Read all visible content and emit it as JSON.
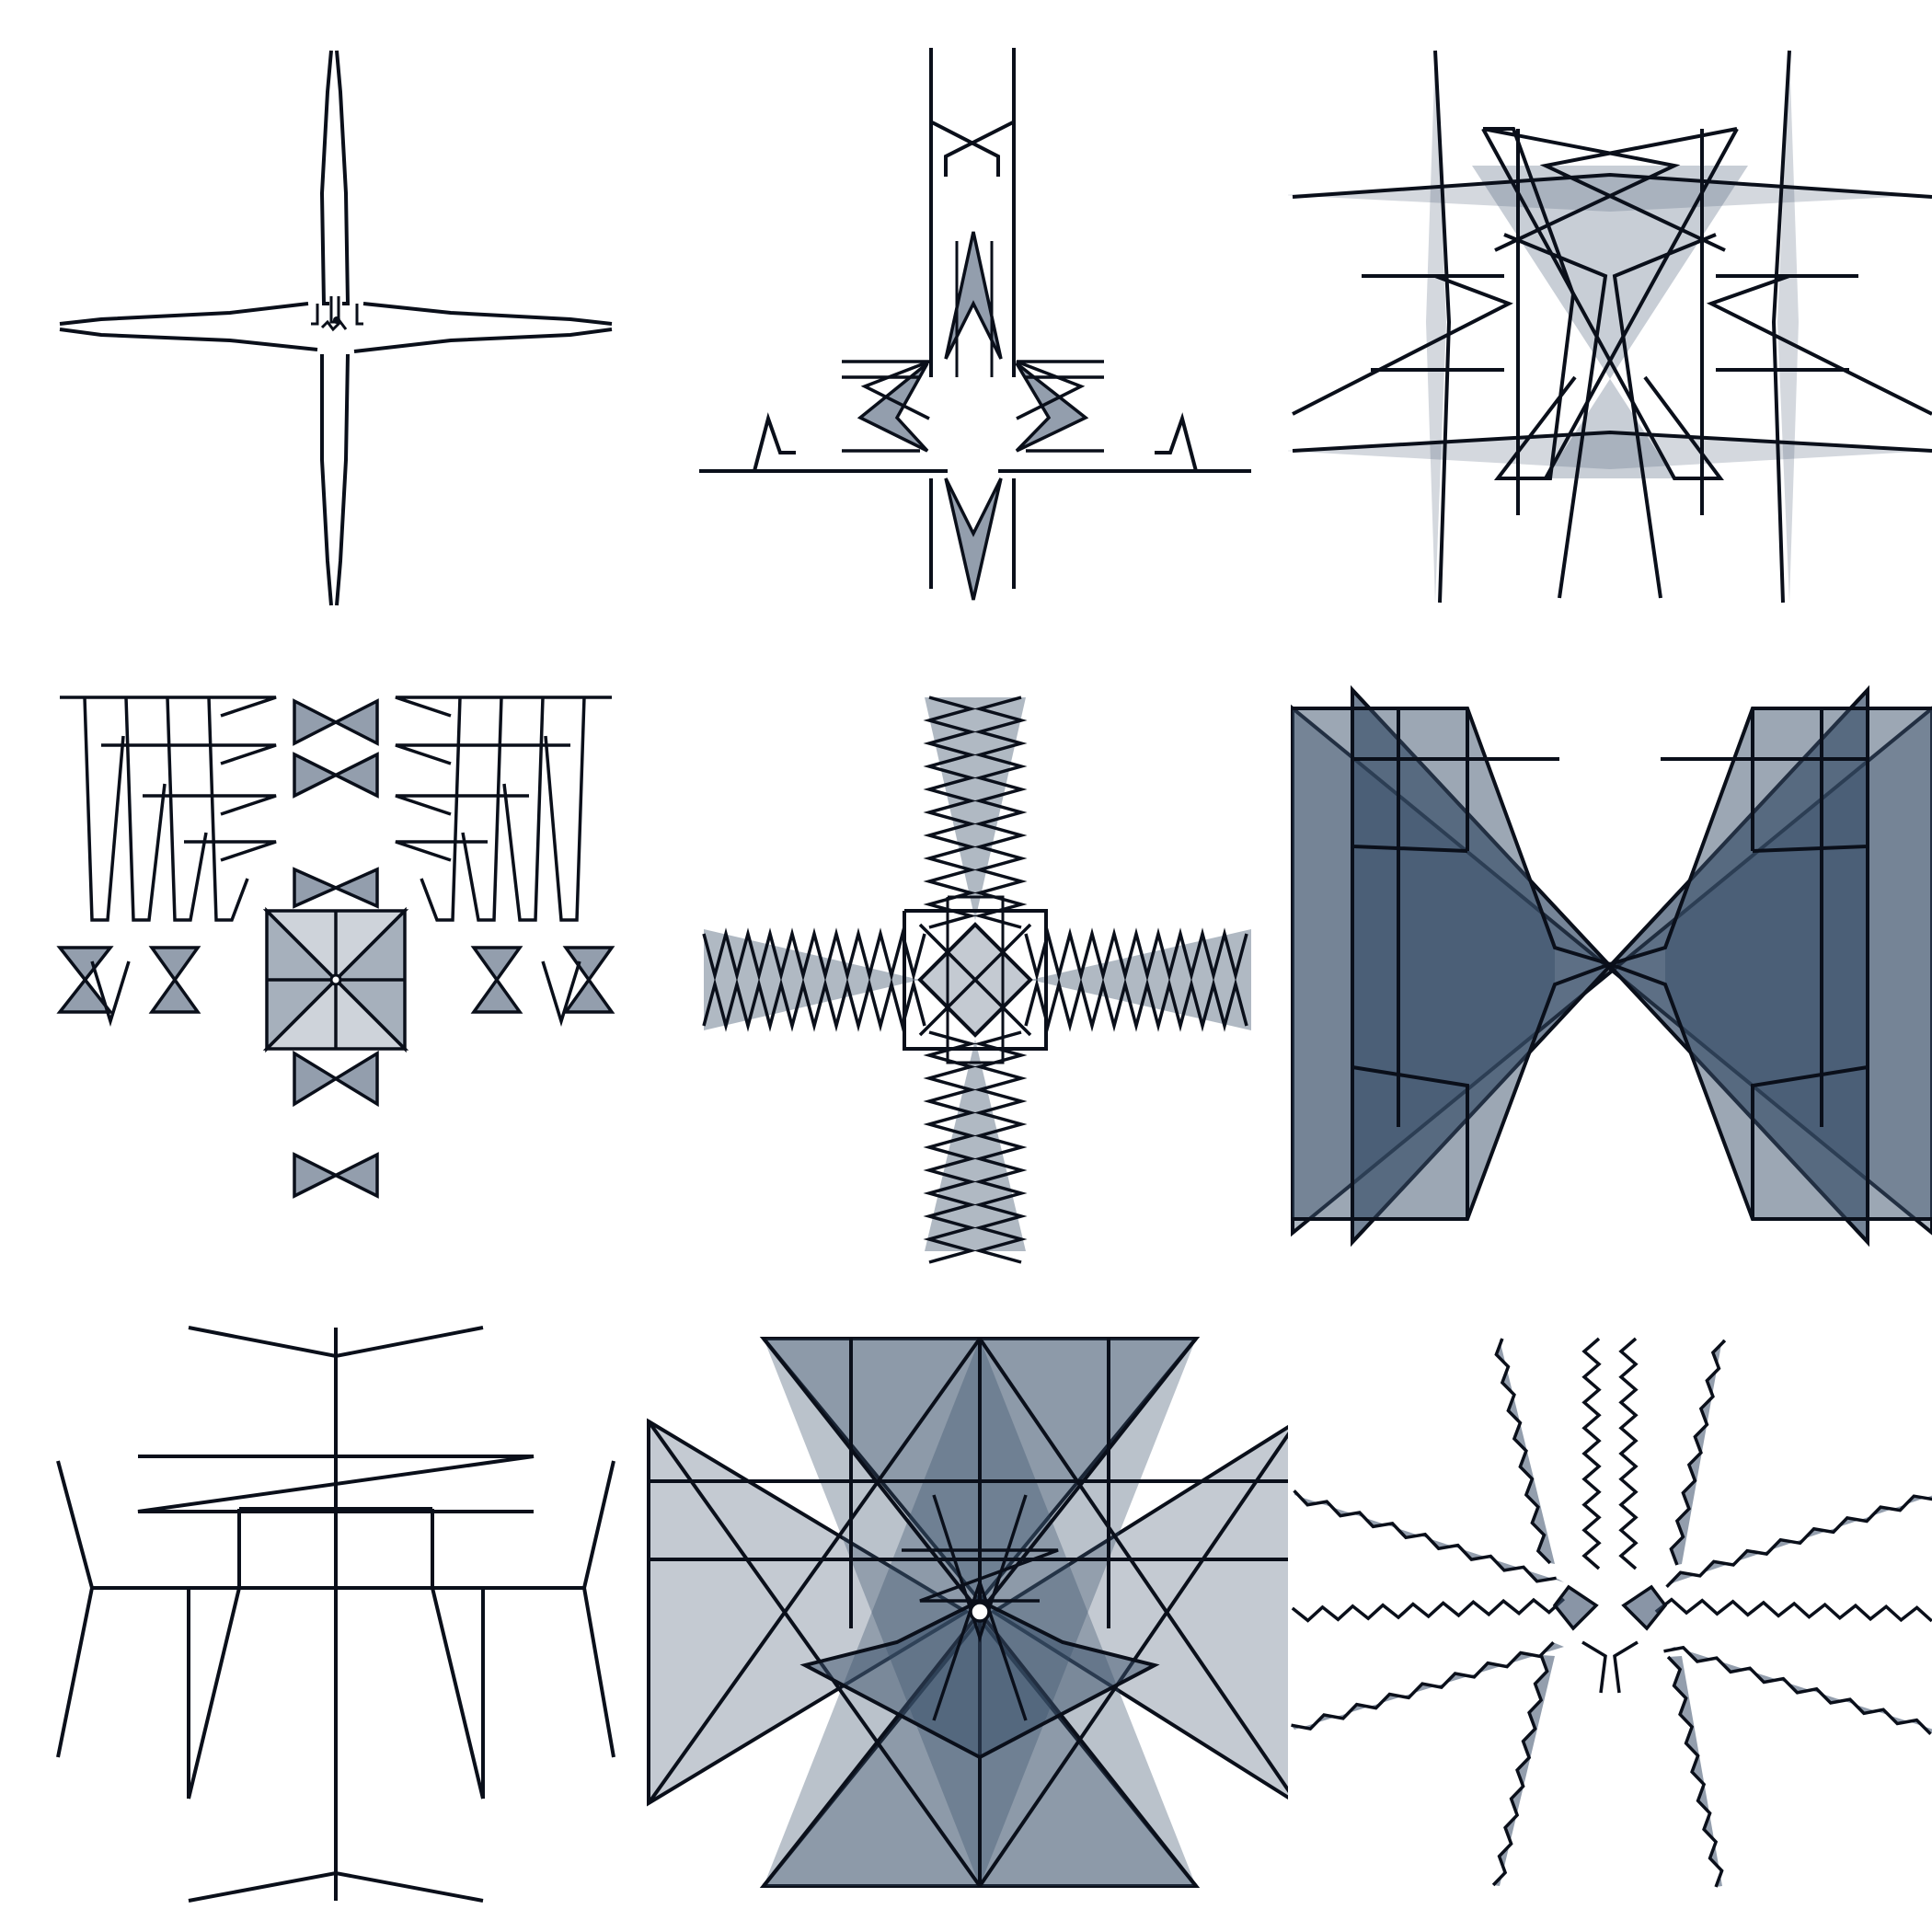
{
  "theme": {
    "background": "#ffffff",
    "stroke": "#0a0f1a",
    "fill": "#3a4f6a",
    "fill_light": "#9aa7b8"
  },
  "grid": {
    "rows": 3,
    "cols": 3
  },
  "glyphs": [
    {
      "kind": "thin-cross"
    },
    {
      "kind": "zigzag-cross"
    },
    {
      "kind": "lattice-frame"
    },
    {
      "kind": "spiked-lattice"
    },
    {
      "kind": "dense-zigzag-cross"
    },
    {
      "kind": "bowtie-cross"
    },
    {
      "kind": "stick-figure"
    },
    {
      "kind": "star-burst"
    },
    {
      "kind": "wavy-cross"
    }
  ]
}
